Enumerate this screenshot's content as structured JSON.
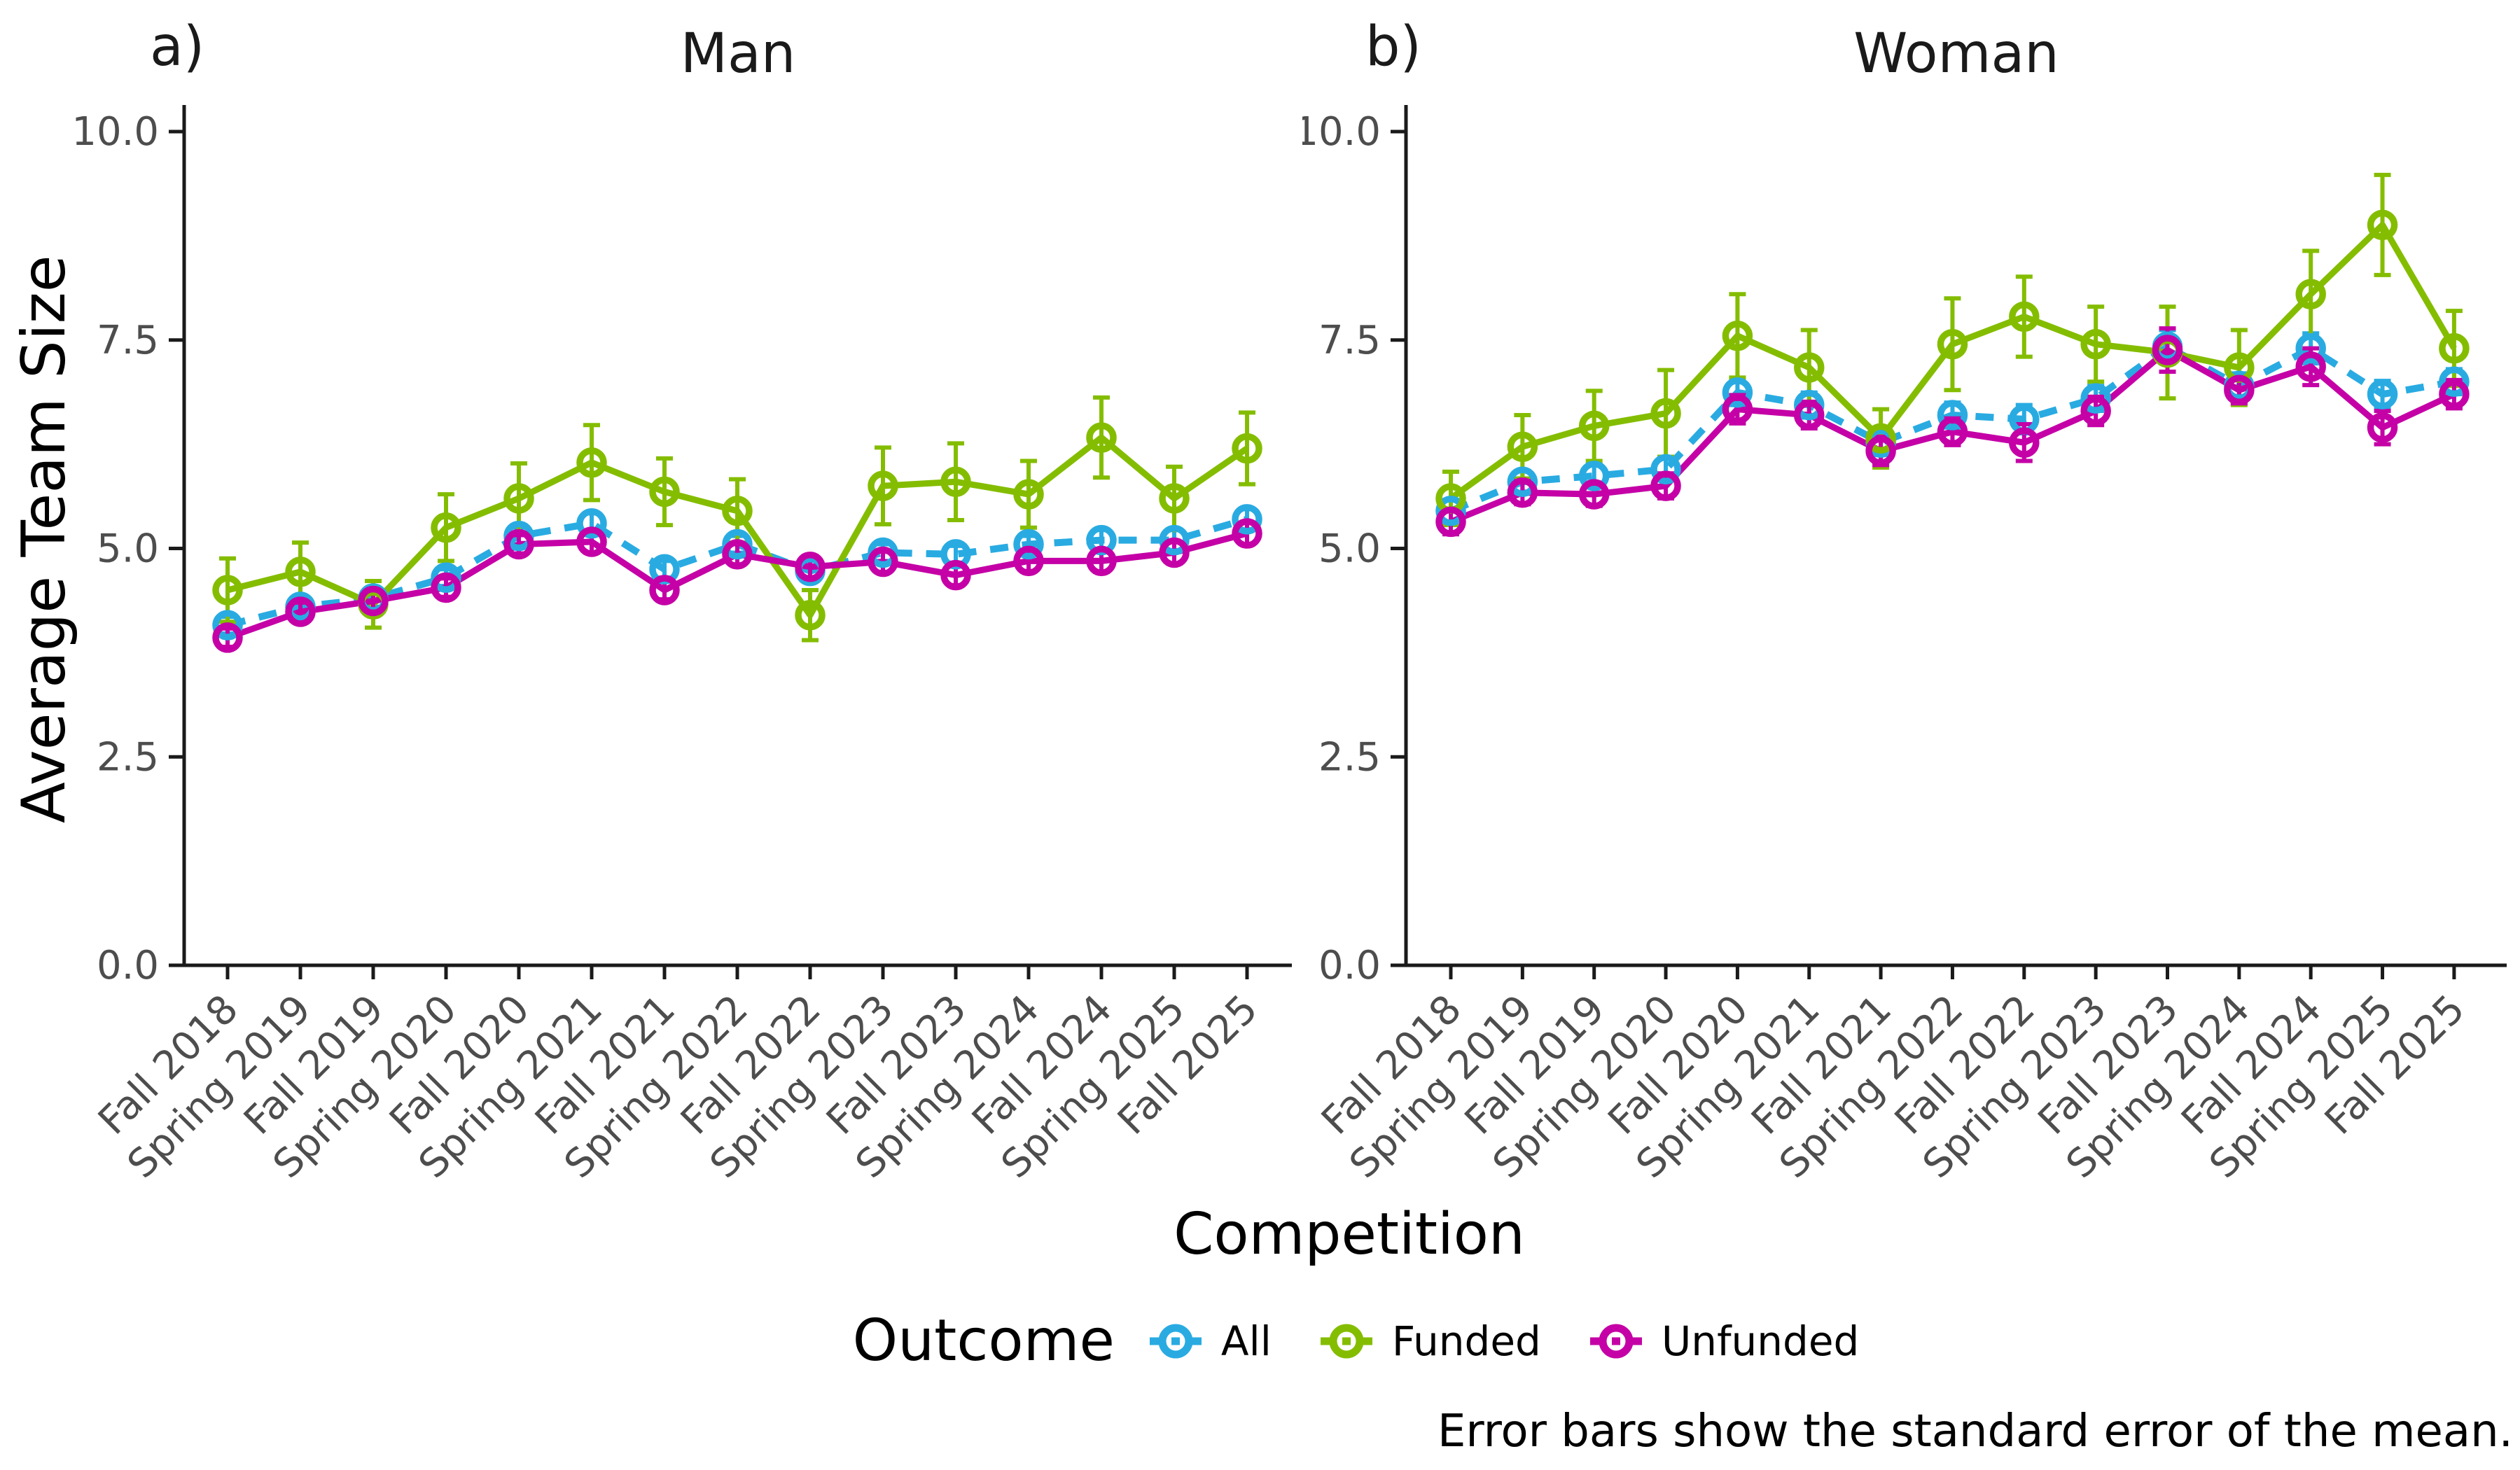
{
  "figure": {
    "panel_a_letter": "a)",
    "panel_b_letter": "b)",
    "ylabel": "Average Team Size",
    "xlabel": "Competition",
    "caption": "Error bars show the standard error of the mean."
  },
  "legend": {
    "title": "Outcome",
    "items": [
      {
        "label": "All",
        "color": "#29ABE2"
      },
      {
        "label": "Funded",
        "color": "#84BD00"
      },
      {
        "label": "Unfunded",
        "color": "#C400A6"
      }
    ]
  },
  "chart_data": {
    "type": "line",
    "categories": [
      "Fall 2018",
      "Spring 2019",
      "Fall 2019",
      "Spring 2020",
      "Fall 2020",
      "Spring 2021",
      "Fall 2021",
      "Spring 2022",
      "Fall 2022",
      "Spring 2023",
      "Fall 2023",
      "Spring 2024",
      "Fall 2024",
      "Spring 2025",
      "Fall 2025"
    ],
    "xlabel": "Competition",
    "ylabel": "Average Team Size",
    "ylim": [
      0,
      10
    ],
    "yticks": [
      0.0,
      2.5,
      5.0,
      7.5,
      10.0
    ],
    "ytick_labels": [
      "0.0",
      "2.5",
      "5.0",
      "7.5",
      "10.0"
    ],
    "grid": false,
    "legend_position": "bottom",
    "error_bars": "standard error of the mean",
    "tick_label_color": "#4d4d4d",
    "axis_color": "#1a1a1a",
    "panels": [
      {
        "id": "a",
        "title": "Man",
        "series": [
          {
            "name": "All",
            "color": "#29ABE2",
            "dashed": true,
            "values": [
              4.08,
              4.3,
              4.4,
              4.65,
              5.15,
              5.3,
              4.75,
              5.05,
              4.73,
              4.95,
              4.93,
              5.05,
              5.1,
              5.1,
              5.35
            ],
            "se": [
              0.1,
              0.1,
              0.1,
              0.1,
              0.1,
              0.12,
              0.1,
              0.1,
              0.12,
              0.1,
              0.1,
              0.1,
              0.12,
              0.12,
              0.12
            ]
          },
          {
            "name": "Funded",
            "color": "#84BD00",
            "dashed": false,
            "values": [
              4.5,
              4.72,
              4.33,
              5.25,
              5.6,
              6.03,
              5.68,
              5.45,
              4.2,
              5.75,
              5.8,
              5.65,
              6.33,
              5.6,
              6.2
            ],
            "se": [
              0.38,
              0.35,
              0.28,
              0.4,
              0.42,
              0.45,
              0.4,
              0.38,
              0.3,
              0.46,
              0.46,
              0.4,
              0.48,
              0.38,
              0.43
            ]
          },
          {
            "name": "Unfunded",
            "color": "#C400A6",
            "dashed": false,
            "values": [
              3.93,
              4.24,
              4.37,
              4.53,
              5.05,
              5.08,
              4.5,
              4.93,
              4.78,
              4.84,
              4.68,
              4.85,
              4.85,
              4.95,
              5.18
            ],
            "se": [
              0.11,
              0.11,
              0.11,
              0.11,
              0.11,
              0.13,
              0.11,
              0.12,
              0.13,
              0.12,
              0.12,
              0.12,
              0.13,
              0.13,
              0.13
            ]
          }
        ]
      },
      {
        "id": "b",
        "title": "Woman",
        "series": [
          {
            "name": "All",
            "color": "#29ABE2",
            "dashed": true,
            "values": [
              5.45,
              5.8,
              5.87,
              5.95,
              6.87,
              6.72,
              6.27,
              6.6,
              6.55,
              6.8,
              7.42,
              6.95,
              7.4,
              6.85,
              7.0
            ],
            "se": [
              0.13,
              0.13,
              0.13,
              0.13,
              0.15,
              0.15,
              0.15,
              0.15,
              0.17,
              0.15,
              0.2,
              0.15,
              0.18,
              0.16,
              0.15
            ]
          },
          {
            "name": "Funded",
            "color": "#84BD00",
            "dashed": false,
            "values": [
              5.6,
              6.22,
              6.47,
              6.62,
              7.55,
              7.17,
              6.32,
              7.45,
              7.78,
              7.45,
              7.35,
              7.17,
              8.05,
              8.88,
              7.4
            ],
            "se": [
              0.32,
              0.38,
              0.42,
              0.52,
              0.5,
              0.45,
              0.35,
              0.55,
              0.48,
              0.45,
              0.55,
              0.45,
              0.52,
              0.6,
              0.45
            ]
          },
          {
            "name": "Unfunded",
            "color": "#C400A6",
            "dashed": false,
            "values": [
              5.32,
              5.67,
              5.65,
              5.75,
              6.67,
              6.6,
              6.17,
              6.4,
              6.27,
              6.65,
              7.38,
              6.9,
              7.18,
              6.45,
              6.85
            ],
            "se": [
              0.15,
              0.14,
              0.14,
              0.15,
              0.17,
              0.16,
              0.17,
              0.16,
              0.22,
              0.17,
              0.26,
              0.16,
              0.22,
              0.2,
              0.17
            ]
          }
        ]
      }
    ]
  }
}
